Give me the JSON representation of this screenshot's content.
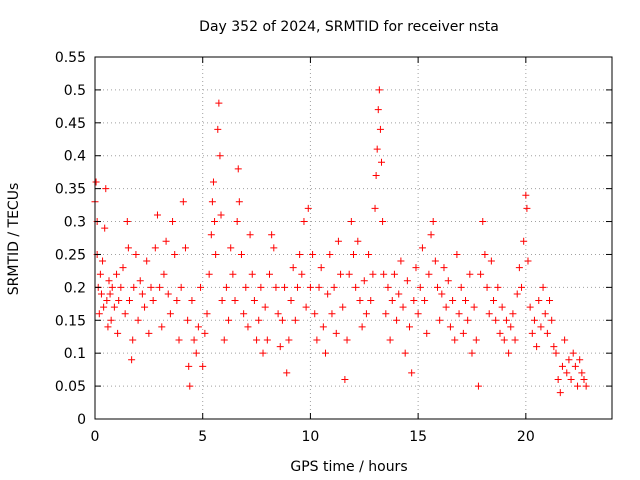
{
  "chart_data": {
    "type": "scatter",
    "title": "Day 352 of 2024, SRMTID for receiver nsta",
    "xlabel": "GPS time / hours",
    "ylabel": "SRMTID / TECUs",
    "xlim": [
      0,
      24
    ],
    "ylim": [
      0,
      0.55
    ],
    "x_ticks": [
      0,
      5,
      10,
      15,
      20
    ],
    "x_tick_labels": [
      "0",
      "5",
      "10",
      "15",
      "20"
    ],
    "y_ticks": [
      0,
      0.05,
      0.1,
      0.15,
      0.2,
      0.25,
      0.3,
      0.35,
      0.4,
      0.45,
      0.5,
      0.55
    ],
    "y_tick_labels": [
      "0",
      "0.05",
      "0.1",
      "0.15",
      "0.2",
      "0.25",
      "0.3",
      "0.35",
      "0.4",
      "0.45",
      "0.5",
      "0.55"
    ],
    "grid": true,
    "marker": "+",
    "color": "#ff0000",
    "series": [
      {
        "name": "SRMTID",
        "points": [
          [
            0.0,
            0.33
          ],
          [
            0.05,
            0.36
          ],
          [
            0.1,
            0.3
          ],
          [
            0.1,
            0.25
          ],
          [
            0.15,
            0.2
          ],
          [
            0.2,
            0.16
          ],
          [
            0.25,
            0.22
          ],
          [
            0.3,
            0.19
          ],
          [
            0.35,
            0.24
          ],
          [
            0.4,
            0.17
          ],
          [
            0.45,
            0.29
          ],
          [
            0.5,
            0.35
          ],
          [
            0.55,
            0.18
          ],
          [
            0.6,
            0.14
          ],
          [
            0.65,
            0.21
          ],
          [
            0.7,
            0.19
          ],
          [
            0.75,
            0.15
          ],
          [
            0.8,
            0.2
          ],
          [
            0.9,
            0.17
          ],
          [
            1.0,
            0.22
          ],
          [
            1.05,
            0.13
          ],
          [
            1.1,
            0.18
          ],
          [
            1.2,
            0.2
          ],
          [
            1.3,
            0.23
          ],
          [
            1.4,
            0.16
          ],
          [
            1.5,
            0.3
          ],
          [
            1.55,
            0.26
          ],
          [
            1.6,
            0.18
          ],
          [
            1.7,
            0.09
          ],
          [
            1.75,
            0.12
          ],
          [
            1.8,
            0.2
          ],
          [
            1.9,
            0.25
          ],
          [
            2.0,
            0.15
          ],
          [
            2.1,
            0.21
          ],
          [
            2.2,
            0.19
          ],
          [
            2.3,
            0.17
          ],
          [
            2.4,
            0.24
          ],
          [
            2.5,
            0.13
          ],
          [
            2.6,
            0.2
          ],
          [
            2.7,
            0.18
          ],
          [
            2.8,
            0.26
          ],
          [
            2.9,
            0.31
          ],
          [
            3.0,
            0.2
          ],
          [
            3.1,
            0.14
          ],
          [
            3.2,
            0.22
          ],
          [
            3.3,
            0.27
          ],
          [
            3.4,
            0.19
          ],
          [
            3.5,
            0.16
          ],
          [
            3.6,
            0.3
          ],
          [
            3.7,
            0.25
          ],
          [
            3.8,
            0.18
          ],
          [
            3.9,
            0.12
          ],
          [
            4.0,
            0.2
          ],
          [
            4.1,
            0.33
          ],
          [
            4.2,
            0.26
          ],
          [
            4.3,
            0.15
          ],
          [
            4.35,
            0.08
          ],
          [
            4.4,
            0.05
          ],
          [
            4.5,
            0.18
          ],
          [
            4.6,
            0.12
          ],
          [
            4.7,
            0.1
          ],
          [
            4.8,
            0.14
          ],
          [
            4.9,
            0.2
          ],
          [
            5.0,
            0.08
          ],
          [
            5.1,
            0.13
          ],
          [
            5.2,
            0.16
          ],
          [
            5.3,
            0.22
          ],
          [
            5.4,
            0.28
          ],
          [
            5.45,
            0.33
          ],
          [
            5.5,
            0.36
          ],
          [
            5.55,
            0.3
          ],
          [
            5.6,
            0.25
          ],
          [
            5.7,
            0.44
          ],
          [
            5.75,
            0.48
          ],
          [
            5.8,
            0.4
          ],
          [
            5.85,
            0.31
          ],
          [
            5.9,
            0.18
          ],
          [
            6.0,
            0.12
          ],
          [
            6.1,
            0.2
          ],
          [
            6.2,
            0.15
          ],
          [
            6.3,
            0.26
          ],
          [
            6.4,
            0.22
          ],
          [
            6.5,
            0.18
          ],
          [
            6.6,
            0.3
          ],
          [
            6.65,
            0.38
          ],
          [
            6.7,
            0.33
          ],
          [
            6.8,
            0.25
          ],
          [
            6.9,
            0.16
          ],
          [
            7.0,
            0.2
          ],
          [
            7.1,
            0.14
          ],
          [
            7.2,
            0.28
          ],
          [
            7.3,
            0.22
          ],
          [
            7.4,
            0.18
          ],
          [
            7.5,
            0.12
          ],
          [
            7.6,
            0.15
          ],
          [
            7.7,
            0.2
          ],
          [
            7.8,
            0.1
          ],
          [
            7.9,
            0.17
          ],
          [
            8.0,
            0.12
          ],
          [
            8.1,
            0.22
          ],
          [
            8.2,
            0.28
          ],
          [
            8.3,
            0.26
          ],
          [
            8.4,
            0.2
          ],
          [
            8.5,
            0.16
          ],
          [
            8.6,
            0.11
          ],
          [
            8.7,
            0.15
          ],
          [
            8.8,
            0.2
          ],
          [
            8.9,
            0.07
          ],
          [
            9.0,
            0.12
          ],
          [
            9.1,
            0.18
          ],
          [
            9.2,
            0.23
          ],
          [
            9.3,
            0.15
          ],
          [
            9.4,
            0.2
          ],
          [
            9.5,
            0.25
          ],
          [
            9.6,
            0.22
          ],
          [
            9.7,
            0.3
          ],
          [
            9.8,
            0.17
          ],
          [
            9.9,
            0.32
          ],
          [
            10.0,
            0.2
          ],
          [
            10.1,
            0.25
          ],
          [
            10.2,
            0.16
          ],
          [
            10.3,
            0.12
          ],
          [
            10.4,
            0.2
          ],
          [
            10.5,
            0.23
          ],
          [
            10.6,
            0.14
          ],
          [
            10.7,
            0.1
          ],
          [
            10.8,
            0.19
          ],
          [
            10.9,
            0.25
          ],
          [
            11.0,
            0.16
          ],
          [
            11.1,
            0.2
          ],
          [
            11.2,
            0.13
          ],
          [
            11.3,
            0.27
          ],
          [
            11.4,
            0.22
          ],
          [
            11.5,
            0.17
          ],
          [
            11.6,
            0.06
          ],
          [
            11.7,
            0.12
          ],
          [
            11.8,
            0.22
          ],
          [
            11.9,
            0.3
          ],
          [
            12.0,
            0.25
          ],
          [
            12.1,
            0.2
          ],
          [
            12.2,
            0.27
          ],
          [
            12.3,
            0.18
          ],
          [
            12.4,
            0.14
          ],
          [
            12.5,
            0.21
          ],
          [
            12.6,
            0.16
          ],
          [
            12.7,
            0.25
          ],
          [
            12.8,
            0.18
          ],
          [
            12.9,
            0.22
          ],
          [
            13.0,
            0.32
          ],
          [
            13.05,
            0.37
          ],
          [
            13.1,
            0.41
          ],
          [
            13.15,
            0.47
          ],
          [
            13.2,
            0.5
          ],
          [
            13.25,
            0.44
          ],
          [
            13.3,
            0.39
          ],
          [
            13.35,
            0.3
          ],
          [
            13.4,
            0.22
          ],
          [
            13.5,
            0.16
          ],
          [
            13.6,
            0.2
          ],
          [
            13.7,
            0.12
          ],
          [
            13.8,
            0.18
          ],
          [
            13.9,
            0.22
          ],
          [
            14.0,
            0.15
          ],
          [
            14.1,
            0.19
          ],
          [
            14.2,
            0.24
          ],
          [
            14.3,
            0.17
          ],
          [
            14.4,
            0.1
          ],
          [
            14.5,
            0.21
          ],
          [
            14.6,
            0.14
          ],
          [
            14.7,
            0.07
          ],
          [
            14.8,
            0.18
          ],
          [
            14.9,
            0.23
          ],
          [
            15.0,
            0.16
          ],
          [
            15.1,
            0.2
          ],
          [
            15.2,
            0.26
          ],
          [
            15.3,
            0.18
          ],
          [
            15.4,
            0.13
          ],
          [
            15.5,
            0.22
          ],
          [
            15.6,
            0.28
          ],
          [
            15.7,
            0.3
          ],
          [
            15.8,
            0.24
          ],
          [
            15.9,
            0.2
          ],
          [
            16.0,
            0.15
          ],
          [
            16.1,
            0.19
          ],
          [
            16.2,
            0.23
          ],
          [
            16.3,
            0.17
          ],
          [
            16.4,
            0.21
          ],
          [
            16.5,
            0.14
          ],
          [
            16.6,
            0.18
          ],
          [
            16.7,
            0.12
          ],
          [
            16.8,
            0.25
          ],
          [
            16.9,
            0.16
          ],
          [
            17.0,
            0.2
          ],
          [
            17.1,
            0.13
          ],
          [
            17.2,
            0.18
          ],
          [
            17.3,
            0.15
          ],
          [
            17.4,
            0.22
          ],
          [
            17.5,
            0.1
          ],
          [
            17.6,
            0.17
          ],
          [
            17.7,
            0.12
          ],
          [
            17.8,
            0.05
          ],
          [
            17.9,
            0.22
          ],
          [
            18.0,
            0.3
          ],
          [
            18.1,
            0.25
          ],
          [
            18.2,
            0.2
          ],
          [
            18.3,
            0.16
          ],
          [
            18.4,
            0.24
          ],
          [
            18.5,
            0.18
          ],
          [
            18.6,
            0.15
          ],
          [
            18.7,
            0.2
          ],
          [
            18.8,
            0.13
          ],
          [
            18.9,
            0.17
          ],
          [
            19.0,
            0.12
          ],
          [
            19.1,
            0.15
          ],
          [
            19.2,
            0.1
          ],
          [
            19.3,
            0.14
          ],
          [
            19.4,
            0.16
          ],
          [
            19.5,
            0.12
          ],
          [
            19.6,
            0.19
          ],
          [
            19.7,
            0.23
          ],
          [
            19.8,
            0.2
          ],
          [
            19.9,
            0.27
          ],
          [
            20.0,
            0.34
          ],
          [
            20.05,
            0.32
          ],
          [
            20.1,
            0.24
          ],
          [
            20.2,
            0.17
          ],
          [
            20.3,
            0.13
          ],
          [
            20.4,
            0.15
          ],
          [
            20.5,
            0.11
          ],
          [
            20.6,
            0.18
          ],
          [
            20.7,
            0.14
          ],
          [
            20.8,
            0.2
          ],
          [
            20.9,
            0.16
          ],
          [
            21.0,
            0.13
          ],
          [
            21.1,
            0.18
          ],
          [
            21.2,
            0.15
          ],
          [
            21.3,
            0.11
          ],
          [
            21.4,
            0.1
          ],
          [
            21.5,
            0.06
          ],
          [
            21.6,
            0.04
          ],
          [
            21.7,
            0.08
          ],
          [
            21.8,
            0.12
          ],
          [
            21.9,
            0.07
          ],
          [
            22.0,
            0.09
          ],
          [
            22.1,
            0.06
          ],
          [
            22.2,
            0.1
          ],
          [
            22.3,
            0.08
          ],
          [
            22.4,
            0.05
          ],
          [
            22.5,
            0.09
          ],
          [
            22.6,
            0.07
          ],
          [
            22.7,
            0.06
          ],
          [
            22.8,
            0.05
          ]
        ]
      }
    ]
  }
}
